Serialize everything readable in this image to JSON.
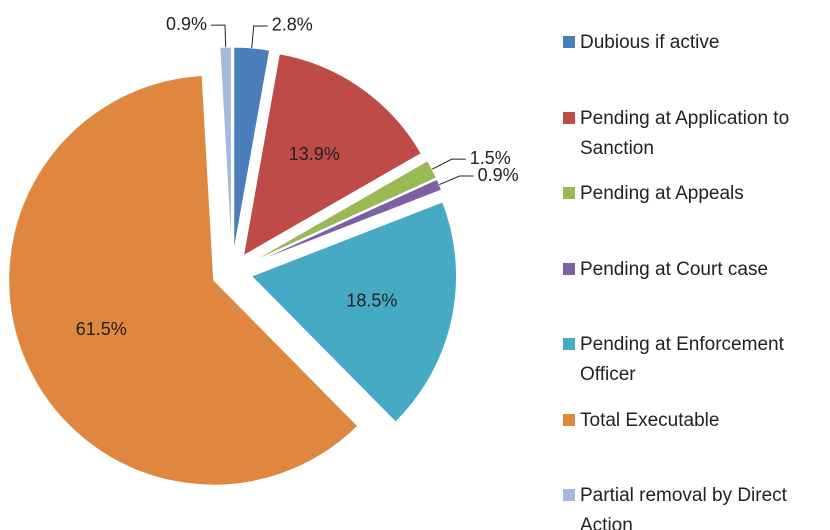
{
  "chart_data": {
    "type": "pie",
    "categories": [
      "Dubious if active",
      "Pending at Application to Sanction",
      "Pending at Appeals",
      "Pending at Court case",
      "Pending at Enforcement Officer",
      "Total Executable",
      "Partial removal by Direct Action"
    ],
    "values": [
      2.8,
      13.9,
      1.5,
      0.9,
      18.5,
      61.5,
      0.9
    ],
    "value_labels": [
      "2.8%",
      "13.9%",
      "1.5%",
      "0.9%",
      "18.5%",
      "61.5%",
      "0.9%"
    ],
    "colors": [
      "#4a7ebb",
      "#be4b48",
      "#98b954",
      "#7d60a0",
      "#46aac5",
      "#e0873f",
      "#a5b8de"
    ],
    "legend": "right"
  }
}
